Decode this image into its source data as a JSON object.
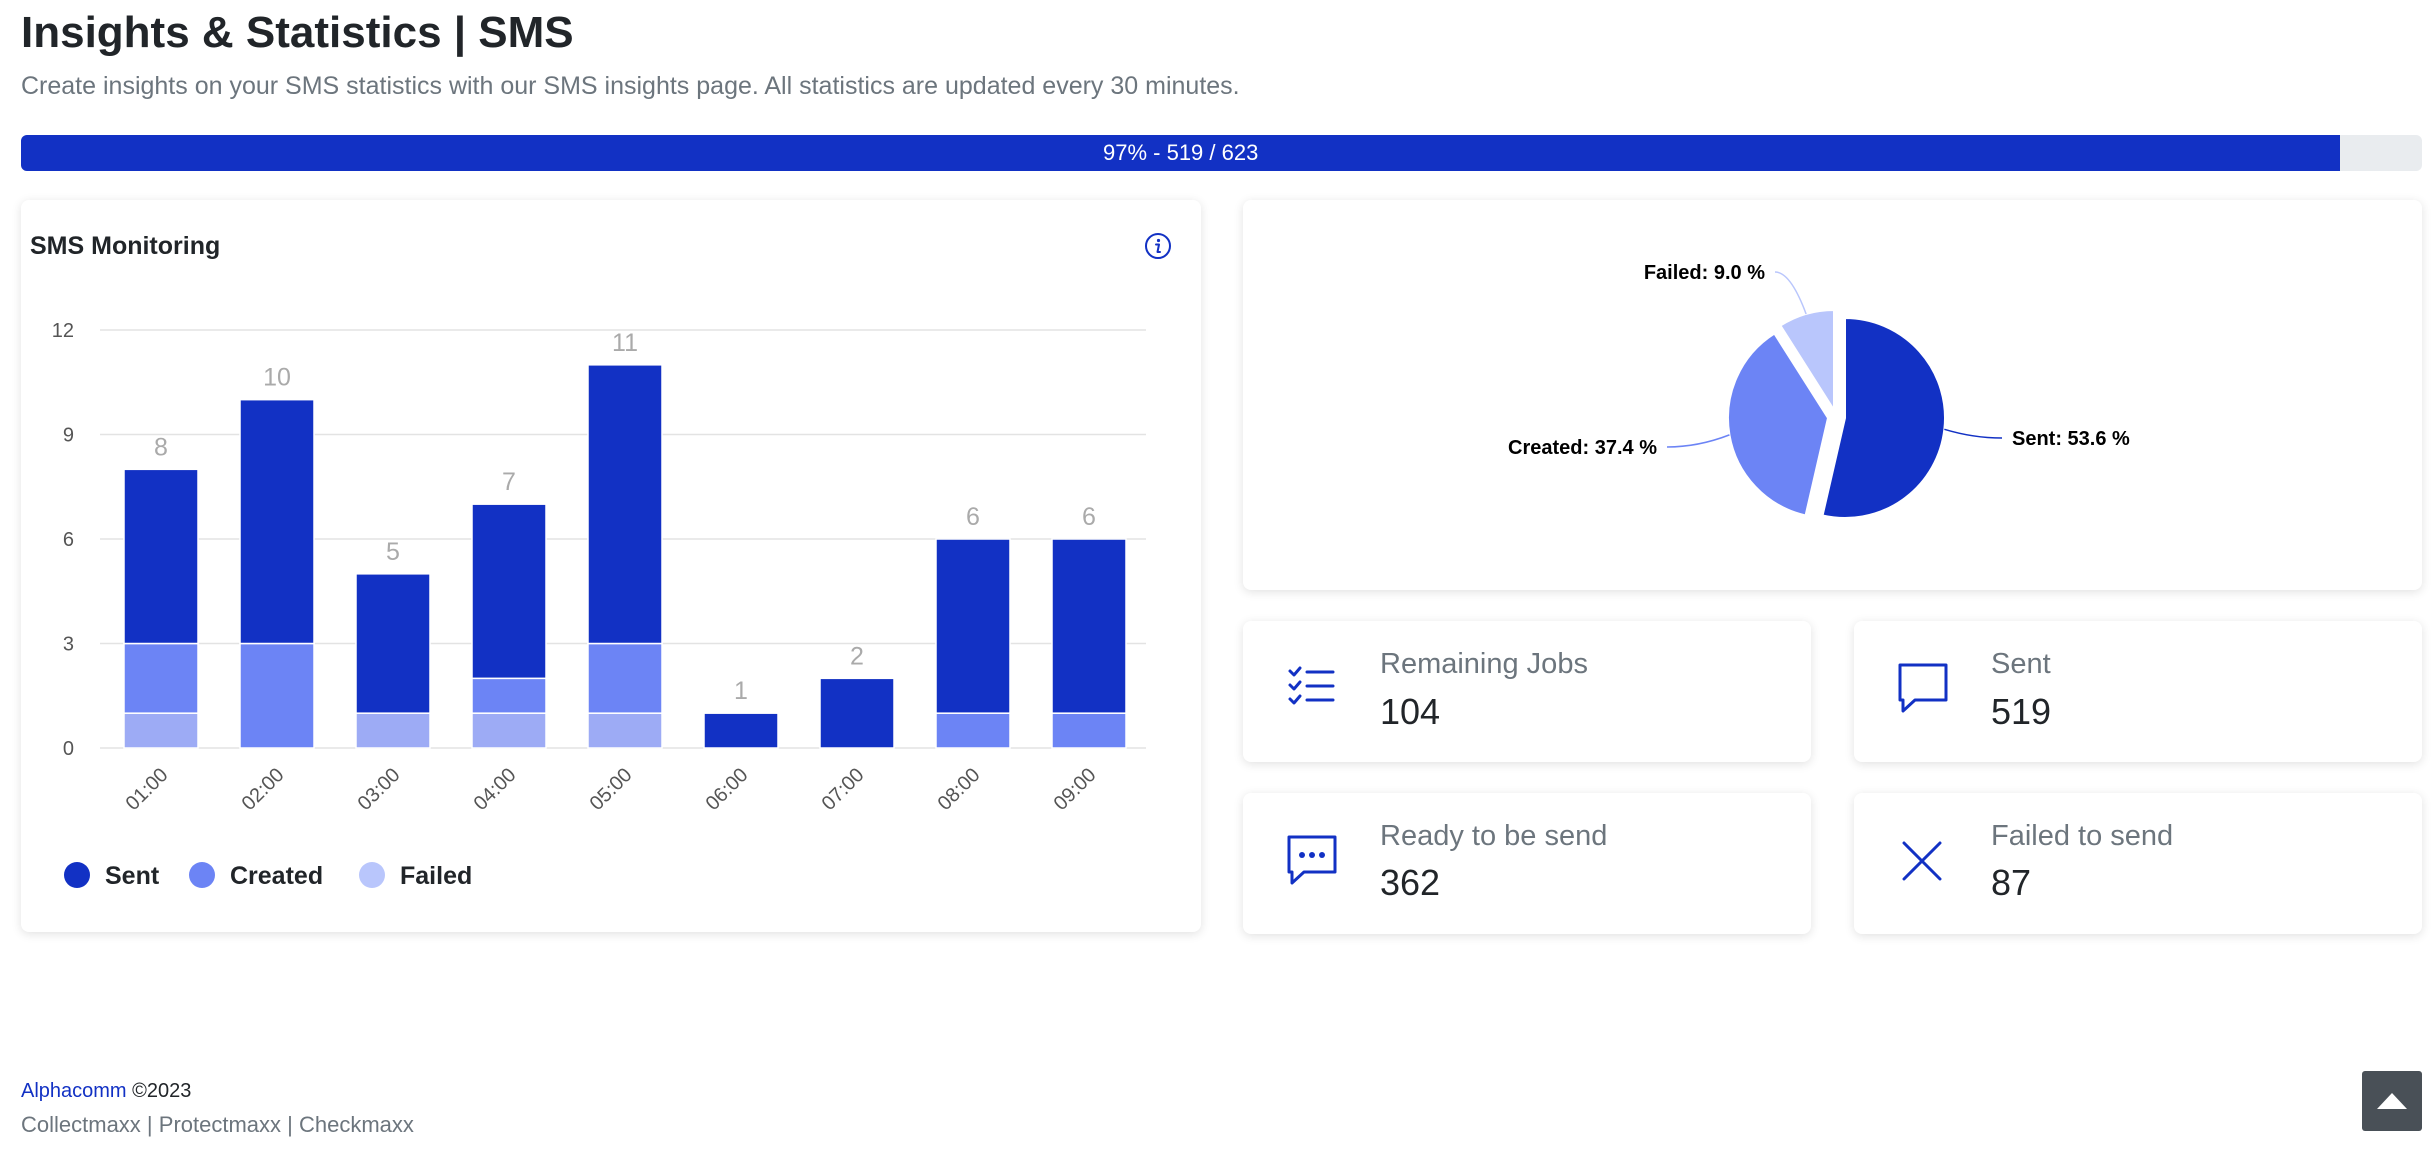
{
  "header": {
    "title": "Insights & Statistics | SMS",
    "subtitle": "Create insights on your SMS statistics with our SMS insights page. All statistics are updated every 30 minutes."
  },
  "progress": {
    "label": "97% - 519 / 623",
    "fraction": 0.966
  },
  "monitoring_card": {
    "title": "SMS Monitoring",
    "info_icon": "info-circle-icon"
  },
  "colors": {
    "sent": "#1231c4",
    "created": "#6c84f5",
    "failed": "#b9c6fc",
    "failed_bar": "#9dabf5"
  },
  "chart_data": [
    {
      "type": "bar",
      "stacked": true,
      "categories": [
        "01:00",
        "02:00",
        "03:00",
        "04:00",
        "05:00",
        "06:00",
        "07:00",
        "08:00",
        "09:00"
      ],
      "series": [
        {
          "name": "Sent",
          "values": [
            5,
            7,
            4,
            5,
            8,
            1,
            2,
            5,
            5
          ]
        },
        {
          "name": "Created",
          "values": [
            2,
            3,
            0,
            1,
            2,
            0,
            0,
            1,
            1
          ]
        },
        {
          "name": "Failed",
          "values": [
            1,
            0,
            1,
            1,
            1,
            0,
            0,
            0,
            0
          ]
        }
      ],
      "totals": [
        "8",
        "10",
        "5",
        "7",
        "11",
        "1",
        "2",
        "6",
        "6"
      ],
      "yticks": [
        "0",
        "3",
        "6",
        "9",
        "12"
      ],
      "ylim": [
        0,
        12
      ],
      "grid": true,
      "legend_position": "bottom-left"
    },
    {
      "type": "pie",
      "slices": [
        {
          "name": "Sent",
          "value": 53.6,
          "label": "Sent: 53.6 %"
        },
        {
          "name": "Created",
          "value": 37.4,
          "label": "Created: 37.4 %"
        },
        {
          "name": "Failed",
          "value": 9.0,
          "label": "Failed: 9.0 %"
        }
      ]
    }
  ],
  "stats": [
    {
      "label": "Remaining Jobs",
      "value": "104",
      "icon": "checklist-icon"
    },
    {
      "label": "Sent",
      "value": "519",
      "icon": "chat-bubble-icon"
    },
    {
      "label": "Ready to be send",
      "value": "362",
      "icon": "chat-dots-icon"
    },
    {
      "label": "Failed to send",
      "value": "87",
      "icon": "x-icon"
    }
  ],
  "footer": {
    "brand": "Alphacomm",
    "copyright": "©2023",
    "links": [
      "Collectmaxx",
      "Protectmaxx",
      "Checkmaxx"
    ],
    "separator": " | "
  },
  "scroll_top_icon": "arrow-up-icon"
}
